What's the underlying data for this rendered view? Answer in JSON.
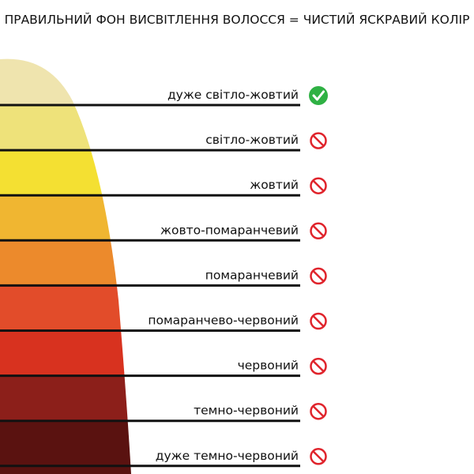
{
  "title": "ПРАВИЛЬНИЙ ФОН ВИСВІТЛЕННЯ ВОЛОССЯ = ЧИСТИЙ ЯСКРАВИЙ КОЛІР",
  "levels": [
    {
      "label": "дуже світло-жовтий",
      "icon": "check",
      "color": "#efe4ae"
    },
    {
      "label": "світло-жовтий",
      "icon": "prohibited",
      "color": "#eee27a"
    },
    {
      "label": "жовтий",
      "icon": "prohibited",
      "color": "#f4e032"
    },
    {
      "label": "жовто-помаранчевий",
      "icon": "prohibited",
      "color": "#f0b631"
    },
    {
      "label": "помаранчевий",
      "icon": "prohibited",
      "color": "#ec8a2c"
    },
    {
      "label": "помаранчево-червоний",
      "icon": "prohibited",
      "color": "#e24c2a"
    },
    {
      "label": "червоний",
      "icon": "prohibited",
      "color": "#d8321f"
    },
    {
      "label": "темно-червоний",
      "icon": "prohibited",
      "color": "#8c1f1a"
    },
    {
      "label": "дуже темно-червоний",
      "icon": "prohibited",
      "color": "#5a1210"
    }
  ]
}
